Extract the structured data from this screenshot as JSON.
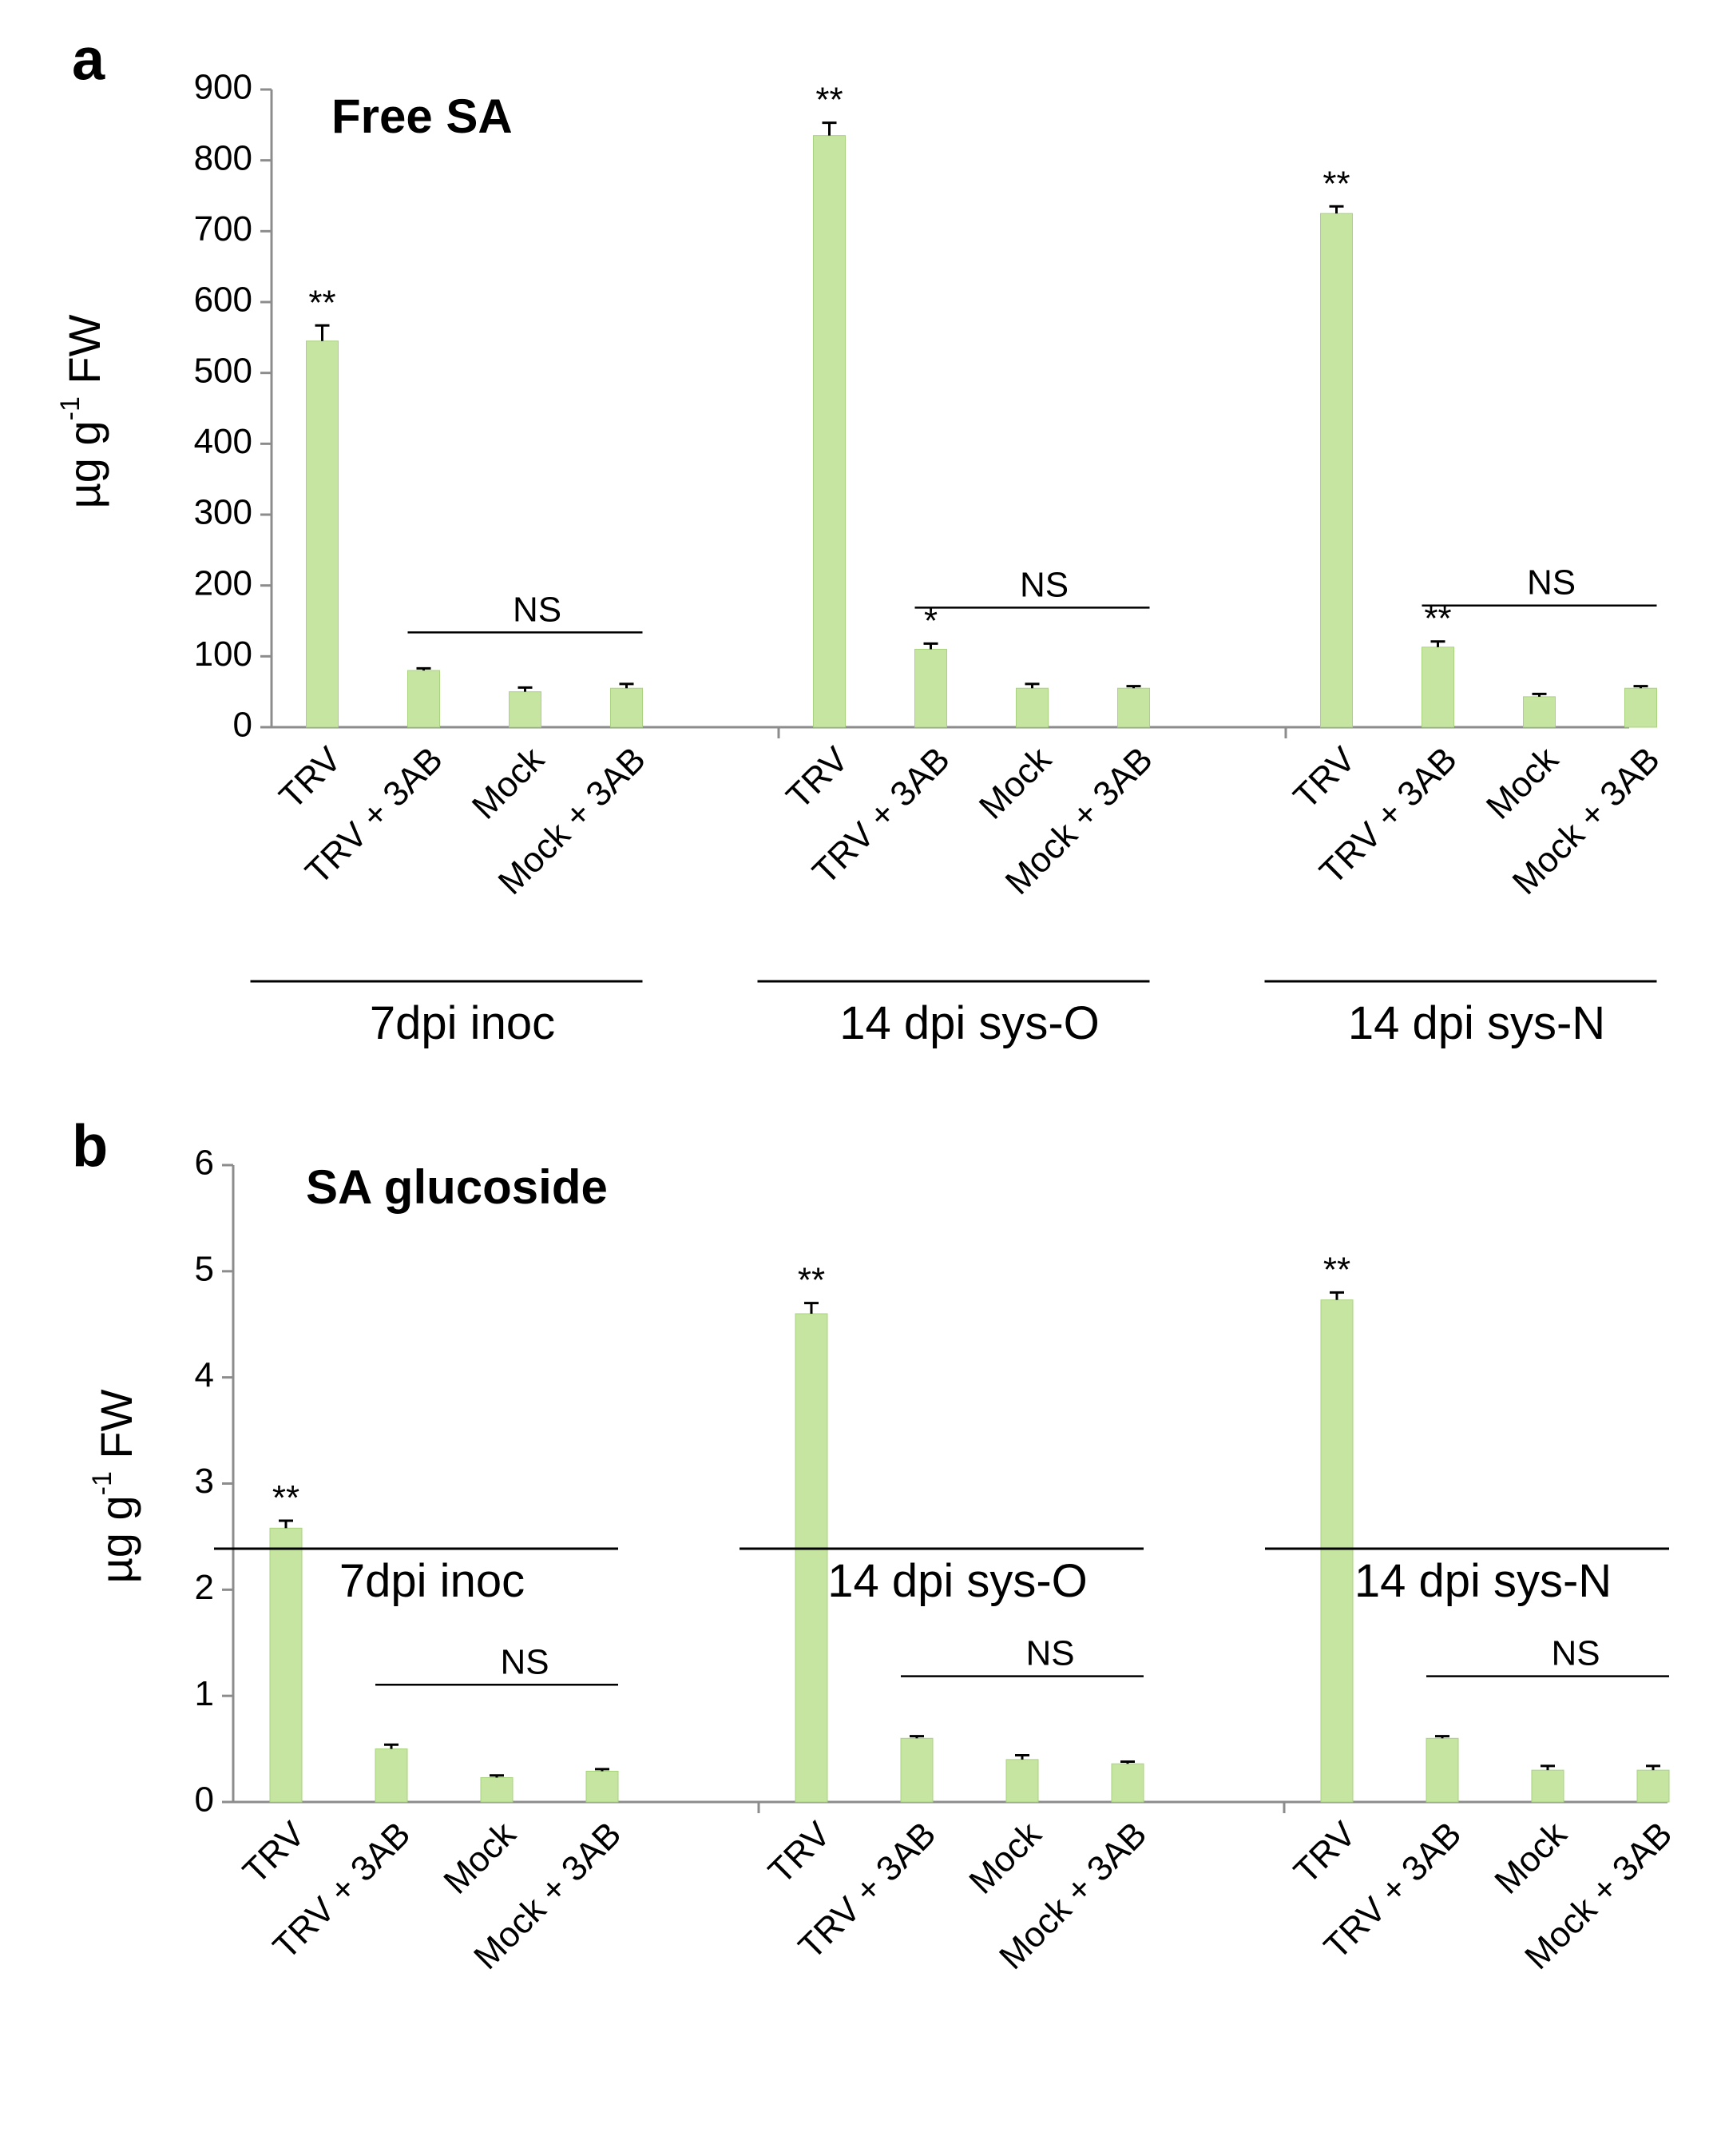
{
  "colors": {
    "bar": "#C6E5A0",
    "bar_stroke": "#A9D37E",
    "axis": "#8C8C8C",
    "ink": "#000000"
  },
  "chart_data": [
    {
      "panel_label": "a",
      "type": "bar",
      "title": "Free SA",
      "ylabel_main": "µg g",
      "ylabel_sup": "-1",
      "ylabel_tail": " FW",
      "ylim": [
        0,
        900
      ],
      "yticks": [
        0,
        100,
        200,
        300,
        400,
        500,
        600,
        700,
        800,
        900
      ],
      "groups": [
        {
          "label": "7dpi inoc",
          "categories": [
            "TRV",
            "TRV + 3AB",
            "Mock",
            "Mock + 3AB"
          ],
          "values": [
            545,
            80,
            50,
            55
          ],
          "errors": [
            22,
            3,
            6,
            6
          ],
          "sig": [
            "**",
            "",
            "",
            ""
          ],
          "ns_label": "NS"
        },
        {
          "label": "14 dpi sys-O",
          "categories": [
            "TRV",
            "TRV + 3AB",
            "Mock",
            "Mock + 3AB"
          ],
          "values": [
            835,
            110,
            55,
            55
          ],
          "errors": [
            18,
            8,
            6,
            3
          ],
          "sig": [
            "**",
            "*",
            "",
            ""
          ],
          "ns_label": "NS"
        },
        {
          "label": "14 dpi sys-N",
          "categories": [
            "TRV",
            "TRV + 3AB",
            "Mock",
            "Mock + 3AB"
          ],
          "values": [
            725,
            113,
            43,
            55
          ],
          "errors": [
            10,
            8,
            4,
            3
          ],
          "sig": [
            "**",
            "**",
            "",
            ""
          ],
          "ns_label": "NS"
        }
      ]
    },
    {
      "panel_label": "b",
      "type": "bar",
      "title": "SA glucoside",
      "ylabel_main": "µg g",
      "ylabel_sup": "-1",
      "ylabel_tail": " FW",
      "ylim": [
        0,
        6
      ],
      "yticks": [
        0,
        1,
        2,
        3,
        4,
        5,
        6
      ],
      "groups": [
        {
          "label": "7dpi inoc",
          "categories": [
            "TRV",
            "TRV + 3AB",
            "Mock",
            "Mock + 3AB"
          ],
          "values": [
            2.58,
            0.5,
            0.23,
            0.29
          ],
          "errors": [
            0.07,
            0.04,
            0.02,
            0.02
          ],
          "sig": [
            "**",
            "",
            "",
            ""
          ],
          "ns_label": "NS"
        },
        {
          "label": "14 dpi sys-O",
          "categories": [
            "TRV",
            "TRV + 3AB",
            "Mock",
            "Mock + 3AB"
          ],
          "values": [
            4.6,
            0.6,
            0.4,
            0.36
          ],
          "errors": [
            0.1,
            0.02,
            0.04,
            0.02
          ],
          "sig": [
            "**",
            "",
            "",
            ""
          ],
          "ns_label": "NS"
        },
        {
          "label": "14 dpi sys-N",
          "categories": [
            "TRV",
            "TRV + 3AB",
            "Mock",
            "Mock + 3AB"
          ],
          "values": [
            4.73,
            0.6,
            0.3,
            0.3
          ],
          "errors": [
            0.07,
            0.02,
            0.04,
            0.04
          ],
          "sig": [
            "**",
            "",
            "",
            ""
          ],
          "ns_label": "NS"
        }
      ]
    }
  ]
}
